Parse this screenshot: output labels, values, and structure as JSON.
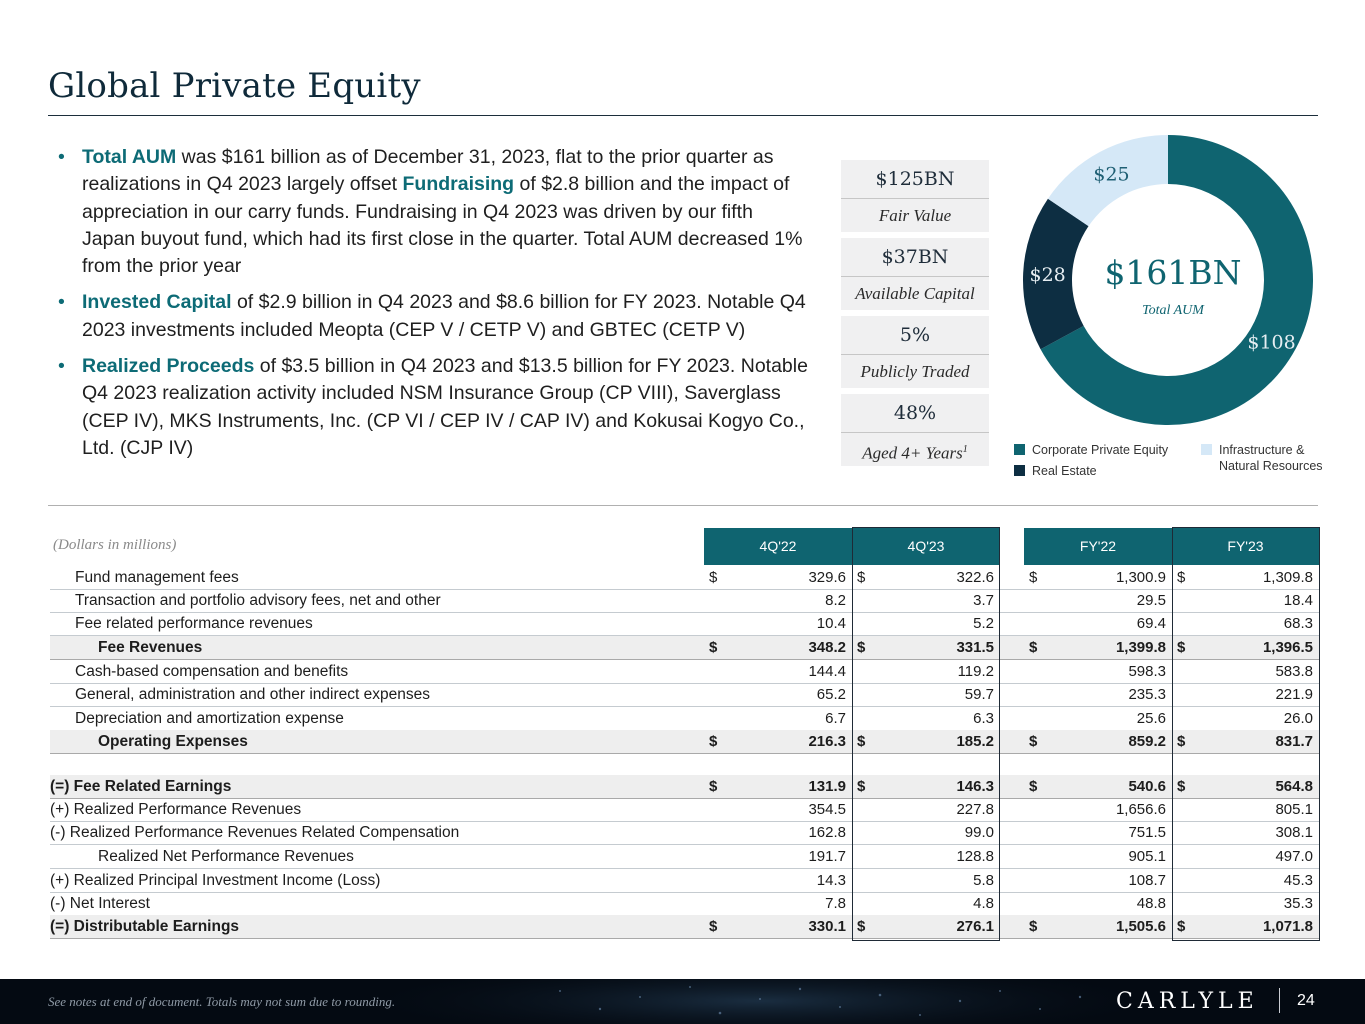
{
  "title": "Global Private Equity",
  "bullets": [
    {
      "highlight": "Total AUM",
      "text": " was $161 billion as of December 31, 2023, flat to the prior quarter as realizations in Q4 2023 largely offset ",
      "highlight2": "Fundraising",
      "text2": " of $2.8 billion and the impact of appreciation in our carry funds. Fundraising in Q4 2023 was driven by our fifth Japan buyout fund, which had its first close in the quarter. Total AUM decreased 1% from the prior year"
    },
    {
      "highlight": "Invested Capital",
      "text": " of $2.9 billion in Q4 2023 and $8.6 billion for FY 2023. Notable Q4 2023 investments included Meopta (CEP V / CETP V) and GBTEC (CETP V)"
    },
    {
      "highlight": "Realized Proceeds",
      "text": " of $3.5 billion in Q4 2023 and $13.5 billion for FY 2023. Notable Q4 2023 realization activity included NSM Insurance Group (CP VIII), Saverglass (CEP IV), MKS Instruments, Inc. (CP VI / CEP IV / CAP IV) and Kokusai Kogyo Co., Ltd. (CJP IV)"
    }
  ],
  "stats": [
    {
      "value": "$125BN",
      "label": "Fair Value",
      "sup": ""
    },
    {
      "value": "$37BN",
      "label": "Available Capital",
      "sup": ""
    },
    {
      "value": "5%",
      "label": "Publicly Traded",
      "sup": ""
    },
    {
      "value": "48%",
      "label": "Aged 4+ Years",
      "sup": "1"
    }
  ],
  "donut": {
    "center_value": "$161BN",
    "center_label": "Total AUM",
    "segments": [
      {
        "name": "Corporate Private Equity",
        "value": 108,
        "label": "$108",
        "color": "#0f6470"
      },
      {
        "name": "Real Estate",
        "value": 28,
        "label": "$28",
        "color": "#0d2e42"
      },
      {
        "name": "Infrastructure & Natural Resources",
        "value": 25,
        "label": "$25",
        "color": "#d5e8f7"
      }
    ],
    "legend": [
      "Corporate Private Equity",
      "Real Estate",
      "Infrastructure &",
      "Natural Resources"
    ]
  },
  "table": {
    "units": "(Dollars in millions)",
    "columns": [
      "4Q'22",
      "4Q'23",
      "FY'22",
      "FY'23"
    ],
    "rows": [
      {
        "label": "Fund management fees",
        "indent": 1,
        "bold": false,
        "dollar": true,
        "values": [
          "329.6",
          "322.6",
          "1,300.9",
          "1,309.8"
        ]
      },
      {
        "label": "Transaction and portfolio advisory fees, net and other",
        "indent": 1,
        "bold": false,
        "dollar": false,
        "values": [
          "8.2",
          "3.7",
          "29.5",
          "18.4"
        ]
      },
      {
        "label": "Fee related performance revenues",
        "indent": 1,
        "bold": false,
        "dollar": false,
        "values": [
          "10.4",
          "5.2",
          "69.4",
          "68.3"
        ]
      },
      {
        "label": "Fee Revenues",
        "indent": 2,
        "bold": true,
        "dollar": true,
        "values": [
          "348.2",
          "331.5",
          "1,399.8",
          "1,396.5"
        ]
      },
      {
        "label": "Cash-based compensation and benefits",
        "indent": 1,
        "bold": false,
        "dollar": false,
        "values": [
          "144.4",
          "119.2",
          "598.3",
          "583.8"
        ]
      },
      {
        "label": "General, administration and other indirect expenses",
        "indent": 1,
        "bold": false,
        "dollar": false,
        "values": [
          "65.2",
          "59.7",
          "235.3",
          "221.9"
        ]
      },
      {
        "label": "Depreciation and amortization expense",
        "indent": 1,
        "bold": false,
        "dollar": false,
        "values": [
          "6.7",
          "6.3",
          "25.6",
          "26.0"
        ]
      },
      {
        "label": "Operating Expenses",
        "indent": 2,
        "bold": true,
        "dollar": true,
        "values": [
          "216.3",
          "185.2",
          "859.2",
          "831.7"
        ]
      },
      {
        "label": "(=) Fee Related Earnings",
        "indent": 0,
        "bold": true,
        "dollar": true,
        "values": [
          "131.9",
          "146.3",
          "540.6",
          "564.8"
        ]
      },
      {
        "label": "(+) Realized Performance Revenues",
        "indent": 0,
        "bold": false,
        "dollar": false,
        "values": [
          "354.5",
          "227.8",
          "1,656.6",
          "805.1"
        ]
      },
      {
        "label": "(-) Realized Performance Revenues Related Compensation",
        "indent": 0,
        "bold": false,
        "dollar": false,
        "values": [
          "162.8",
          "99.0",
          "751.5",
          "308.1"
        ]
      },
      {
        "label": "Realized Net Performance Revenues",
        "indent": 2,
        "bold": false,
        "dollar": false,
        "values": [
          "191.7",
          "128.8",
          "905.1",
          "497.0"
        ]
      },
      {
        "label": "(+) Realized Principal Investment Income (Loss)",
        "indent": 0,
        "bold": false,
        "dollar": false,
        "values": [
          "14.3",
          "5.8",
          "108.7",
          "45.3"
        ]
      },
      {
        "label": "(-) Net Interest",
        "indent": 0,
        "bold": false,
        "dollar": false,
        "values": [
          "7.8",
          "4.8",
          "48.8",
          "35.3"
        ]
      },
      {
        "label": "(=) Distributable Earnings",
        "indent": 0,
        "bold": true,
        "dollar": true,
        "values": [
          "330.1",
          "276.1",
          "1,505.6",
          "1,071.8"
        ]
      }
    ]
  },
  "footer": {
    "note": "See notes at end of document. Totals may not sum due to rounding.",
    "logo": "CARLYLE",
    "page": "24"
  }
}
